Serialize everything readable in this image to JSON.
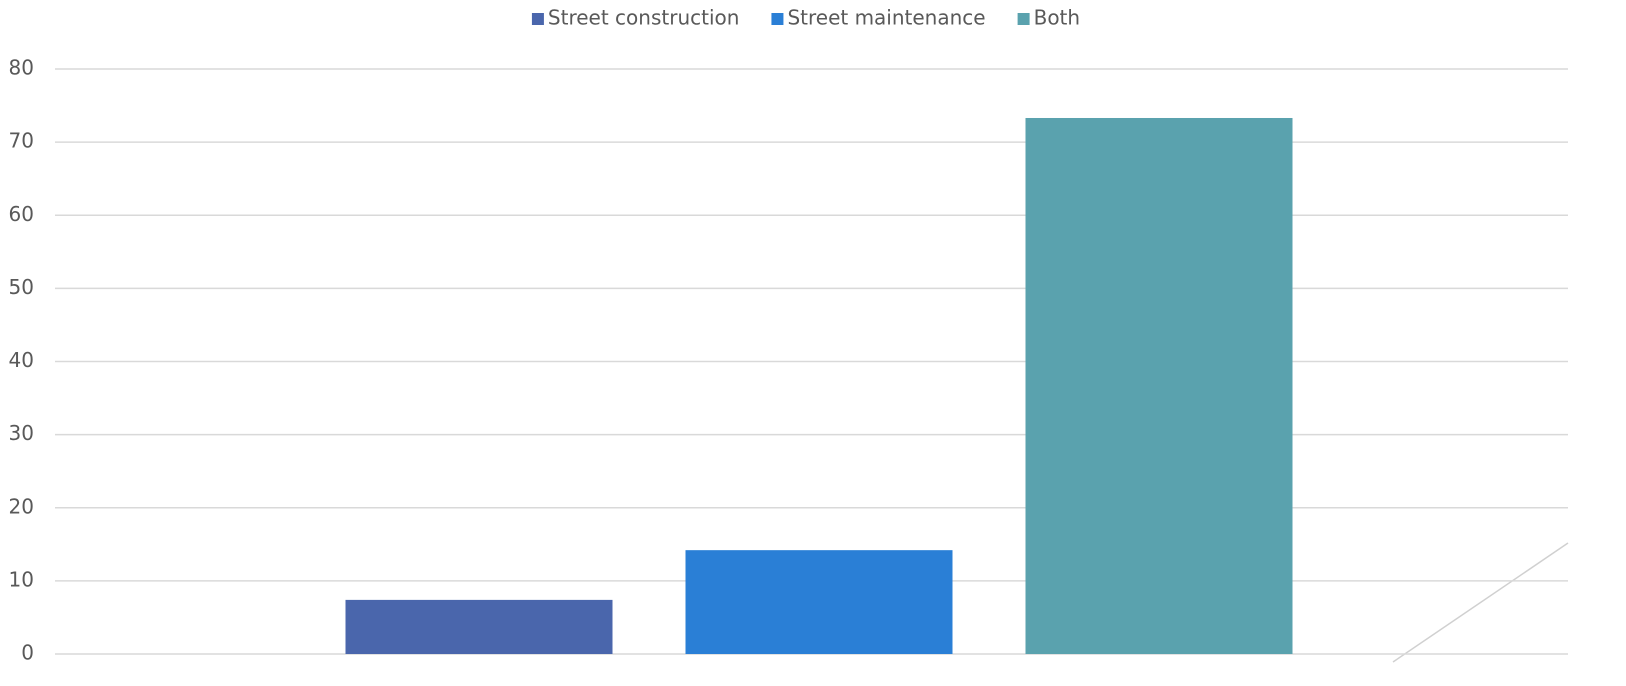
{
  "chart_data": {
    "type": "bar",
    "series": [
      {
        "name": "Street construction",
        "color": "#4a66ac",
        "values": [
          7.4
        ]
      },
      {
        "name": "Street maintenance",
        "color": "#2a7fd6",
        "values": [
          14.2
        ]
      },
      {
        "name": "Both",
        "color": "#5aa2ae",
        "values": [
          73.3
        ]
      }
    ],
    "ylim": [
      0,
      80
    ],
    "yticks": [
      0,
      10,
      20,
      30,
      40,
      50,
      60,
      70,
      80
    ],
    "grid": true,
    "legend": "top"
  }
}
